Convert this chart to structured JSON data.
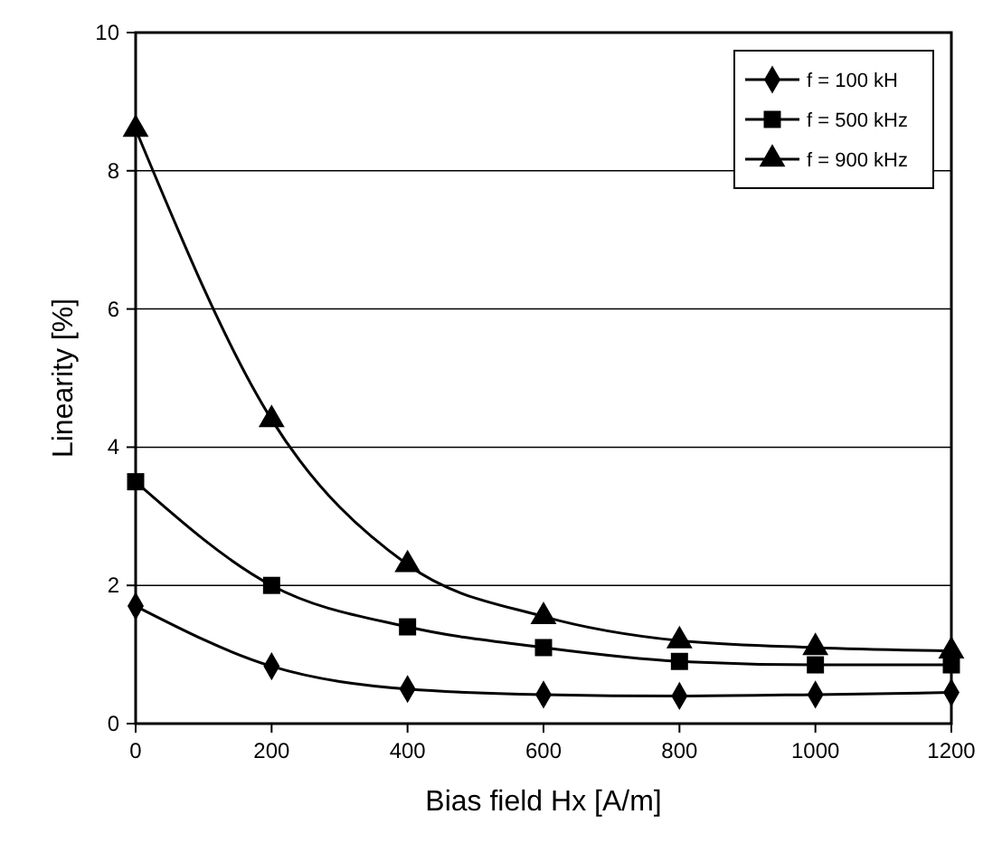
{
  "chart_data": {
    "type": "line",
    "xlabel": "Bias field Hx [A/m]",
    "ylabel": "Linearity [%]",
    "x": [
      0,
      200,
      400,
      600,
      800,
      1000,
      1200
    ],
    "xlim": [
      0,
      1200
    ],
    "xticks": [
      0,
      200,
      400,
      600,
      800,
      1000,
      1200
    ],
    "ylim": [
      0,
      10
    ],
    "yticks": [
      0,
      2,
      4,
      6,
      8,
      10
    ],
    "grid": "y",
    "legend": "top right",
    "series": [
      {
        "name": "f = 100 kH",
        "color": "#000000",
        "marker": "diamond",
        "values": [
          1.7,
          0.83,
          0.5,
          0.42,
          0.4,
          0.42,
          0.45
        ]
      },
      {
        "name": "f = 500 kHz",
        "color": "#000000",
        "marker": "square",
        "values": [
          3.5,
          2.0,
          1.4,
          1.1,
          0.9,
          0.85,
          0.85
        ]
      },
      {
        "name": "f = 900 kHz",
        "color": "#000000",
        "marker": "triangle",
        "values": [
          8.6,
          4.4,
          2.3,
          1.55,
          1.2,
          1.1,
          1.05
        ]
      }
    ]
  }
}
